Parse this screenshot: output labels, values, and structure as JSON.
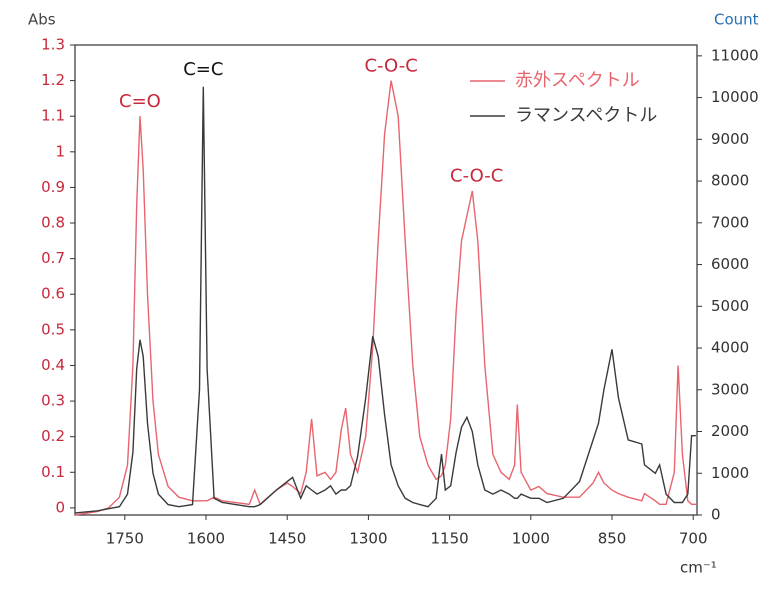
{
  "chart_data": {
    "type": "line",
    "y_label": "Abs",
    "y2_label": "Count",
    "x_label": "cm⁻¹",
    "xlim": [
      1842,
      693
    ],
    "xticks": [
      1750,
      1600,
      1450,
      1300,
      1150,
      1000,
      850,
      700
    ],
    "ylim": [
      -0.02,
      1.3
    ],
    "yticks": [
      0,
      0.1,
      0.2,
      0.3,
      0.4,
      0.5,
      0.6,
      0.7,
      0.8,
      0.9,
      1,
      1.1,
      1.2,
      1.3
    ],
    "y2lim": [
      0,
      11260
    ],
    "y2ticks": [
      0,
      1000,
      2000,
      3000,
      4000,
      5000,
      6000,
      7000,
      8000,
      9000,
      10000,
      11000
    ],
    "legend": "top-right",
    "x": [
      1842,
      1800,
      1780,
      1760,
      1745,
      1735,
      1728,
      1722,
      1716,
      1708,
      1698,
      1688,
      1670,
      1650,
      1625,
      1612,
      1605,
      1598,
      1585,
      1570,
      1520,
      1510,
      1500,
      1470,
      1450,
      1440,
      1425,
      1415,
      1405,
      1395,
      1380,
      1370,
      1360,
      1350,
      1342,
      1333,
      1320,
      1305,
      1292,
      1282,
      1270,
      1258,
      1245,
      1232,
      1218,
      1205,
      1190,
      1175,
      1165,
      1158,
      1148,
      1138,
      1128,
      1118,
      1108,
      1098,
      1085,
      1070,
      1055,
      1040,
      1030,
      1025,
      1018,
      1000,
      985,
      970,
      940,
      910,
      885,
      875,
      865,
      850,
      838,
      820,
      795,
      790,
      770,
      762,
      750,
      735,
      728,
      720,
      710,
      703,
      695
    ],
    "series": [
      {
        "name": "赤外スペクトル",
        "color": "#e8646e",
        "values": [
          -0.02,
          -0.01,
          0.0,
          0.03,
          0.12,
          0.4,
          0.85,
          1.1,
          0.95,
          0.6,
          0.3,
          0.15,
          0.06,
          0.03,
          0.02,
          0.02,
          0.02,
          0.02,
          0.03,
          0.02,
          0.01,
          0.05,
          0.01,
          0.05,
          0.07,
          0.06,
          0.04,
          0.1,
          0.25,
          0.09,
          0.1,
          0.08,
          0.1,
          0.22,
          0.28,
          0.15,
          0.1,
          0.2,
          0.45,
          0.75,
          1.05,
          1.2,
          1.1,
          0.75,
          0.4,
          0.2,
          0.12,
          0.08,
          0.09,
          0.12,
          0.25,
          0.55,
          0.75,
          0.82,
          0.89,
          0.75,
          0.4,
          0.15,
          0.1,
          0.08,
          0.12,
          0.29,
          0.1,
          0.05,
          0.06,
          0.04,
          0.03,
          0.03,
          0.07,
          0.1,
          0.07,
          0.05,
          0.04,
          0.03,
          0.02,
          0.04,
          0.02,
          0.01,
          0.01,
          0.1,
          0.4,
          0.15,
          0.02,
          0.01,
          0.01
        ]
      },
      {
        "name": "ラマンスペクトル",
        "color": "#3a3a3a",
        "axis": "y2",
        "values": [
          50,
          100,
          150,
          200,
          500,
          1500,
          3500,
          4200,
          3800,
          2200,
          1000,
          500,
          250,
          200,
          250,
          3000,
          10260,
          3500,
          400,
          300,
          200,
          200,
          250,
          600,
          800,
          900,
          400,
          700,
          600,
          500,
          600,
          700,
          500,
          600,
          600,
          700,
          1400,
          2800,
          4280,
          3800,
          2400,
          1200,
          700,
          400,
          300,
          250,
          200,
          400,
          1460,
          600,
          700,
          1500,
          2100,
          2340,
          2000,
          1200,
          600,
          500,
          600,
          500,
          400,
          400,
          500,
          400,
          400,
          300,
          400,
          800,
          1800,
          2200,
          3000,
          3970,
          2800,
          1800,
          1700,
          1200,
          1000,
          1200,
          500,
          300,
          300,
          300,
          500,
          1900,
          1900
        ]
      }
    ],
    "annotations": [
      {
        "text": "C=O",
        "color": "#c8283c",
        "x": 1722,
        "y": 1.14
      },
      {
        "text": "C=C",
        "color": "#111111",
        "x": 1605,
        "y": 1.23
      },
      {
        "text": "C-O-C",
        "color": "#c8283c",
        "x": 1258,
        "y": 1.24
      },
      {
        "text": "C-O-C",
        "color": "#c8283c",
        "x": 1100,
        "y": 0.93
      }
    ]
  }
}
